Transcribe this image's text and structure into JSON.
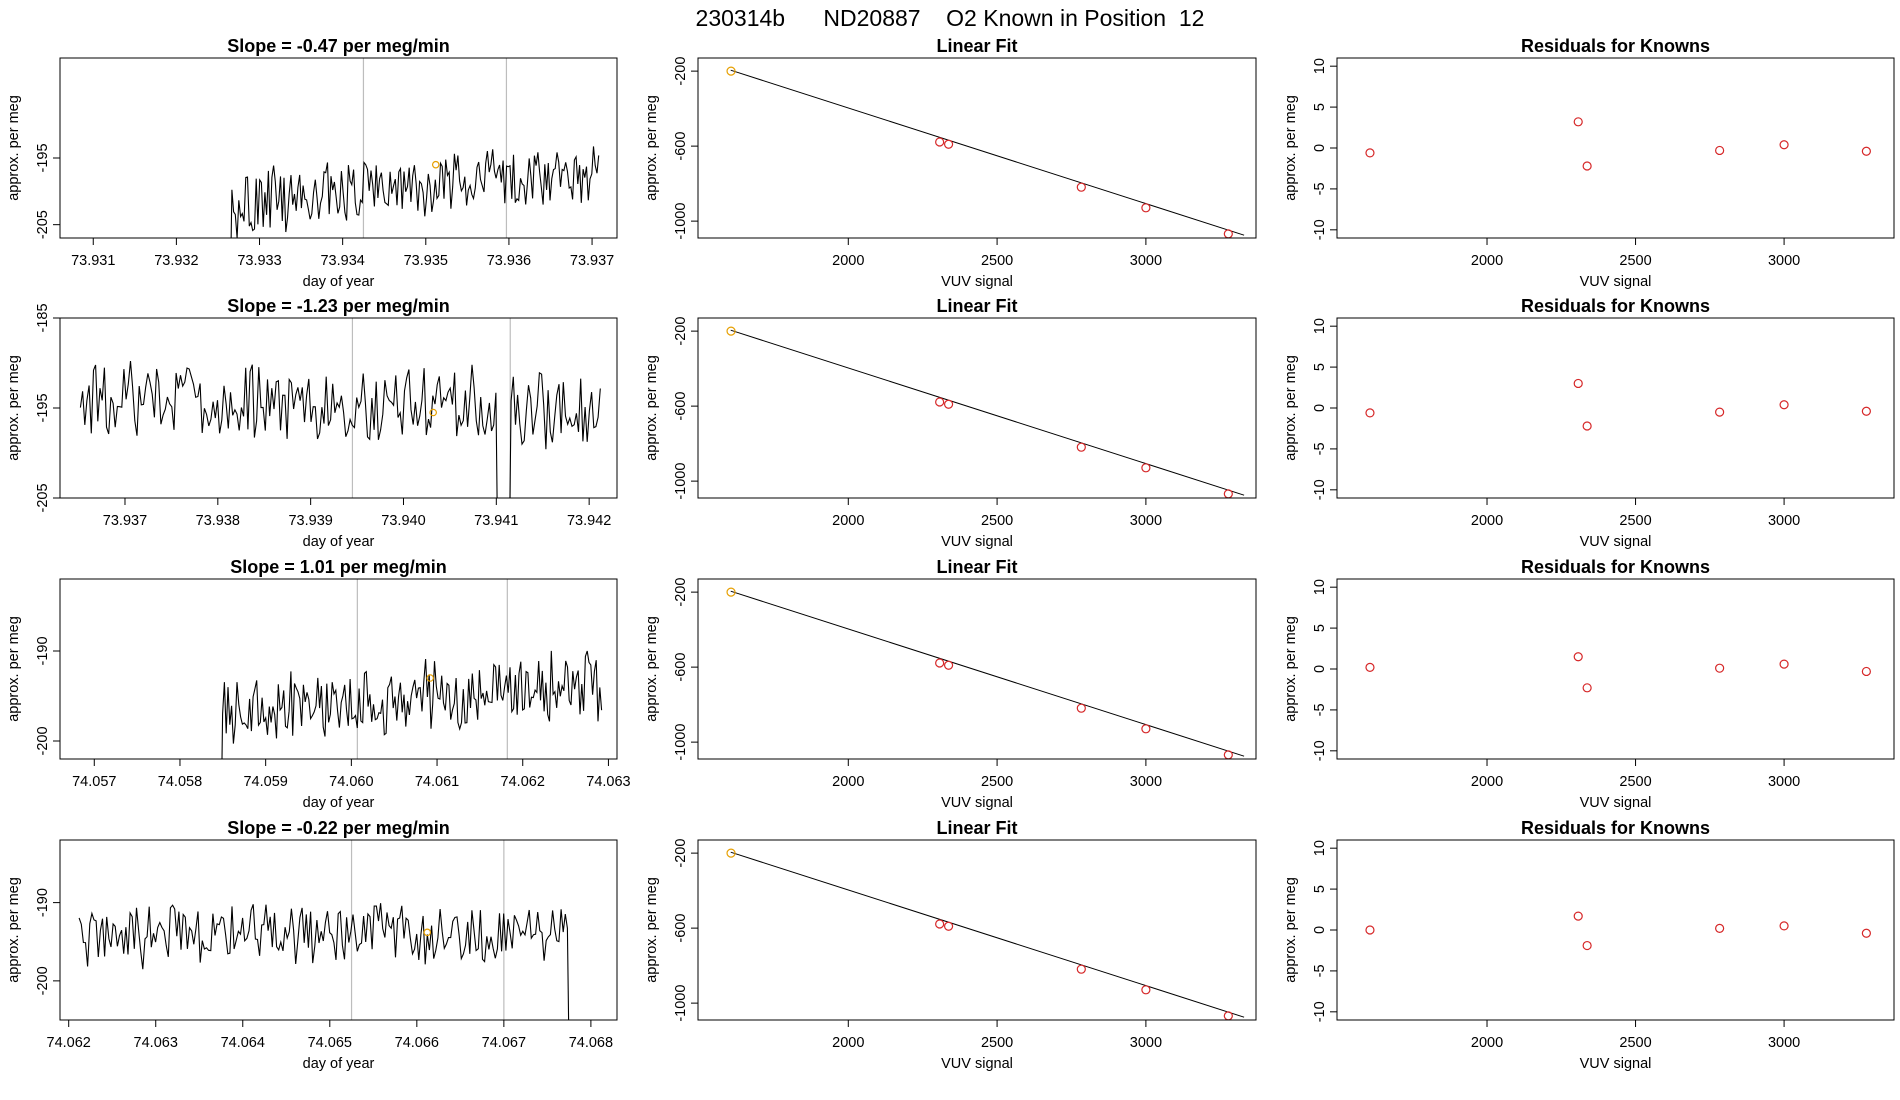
{
  "figure_title": {
    "run_id": "230314b",
    "tank_id": "ND20887",
    "gas": "O2 Known in Position",
    "position": "12"
  },
  "chart_data": [
    {
      "panel": "timeseries-1",
      "type": "line",
      "title": "Slope =  -0.47  per meg/min",
      "xlabel": "day of year",
      "ylabel": "approx. per meg",
      "xlim": [
        73.9306,
        73.9373
      ],
      "ylim": [
        -207,
        -180
      ],
      "xticks": [
        "73.931",
        "73.932",
        "73.933",
        "73.934",
        "73.935",
        "73.936",
        "73.937"
      ],
      "xtick_values": [
        73.931,
        73.932,
        73.933,
        73.934,
        73.935,
        73.936,
        73.937
      ],
      "yticks": [
        "-195",
        "-205"
      ],
      "ytick_values": [
        -195,
        -205
      ],
      "vlines": [
        73.93425,
        73.93597
      ],
      "series_start": 73.9325,
      "series_end": 73.93708,
      "series_n": 220,
      "series_base": -199.5,
      "series_trend": 5.0,
      "series_amp": 4.2,
      "series_offset": 0.02,
      "dropout_start": 73.9325,
      "dropout_end": 73.93265,
      "marker": {
        "x": 73.93512,
        "y": -196.0
      }
    },
    {
      "panel": "linearfit-1",
      "type": "scatter",
      "title": "Linear Fit",
      "xlabel": "VUV signal",
      "ylabel": "approx. per meg",
      "xlim": [
        1495,
        3370
      ],
      "ylim": [
        -1090,
        -130
      ],
      "xticks": [
        "2000",
        "2500",
        "3000"
      ],
      "xtick_values": [
        2000,
        2500,
        3000
      ],
      "yticks": [
        "-200",
        "-600",
        "-1000"
      ],
      "ytick_values": [
        -200,
        -600,
        -1000
      ],
      "fit_line": {
        "x0": 1605,
        "y0": -195,
        "x1": 3330,
        "y1": -1075
      },
      "points": [
        {
          "x": 1606,
          "y": -200,
          "role": "current"
        },
        {
          "x": 2307,
          "y": -578
        },
        {
          "x": 2337,
          "y": -590
        },
        {
          "x": 2783,
          "y": -819
        },
        {
          "x": 3000,
          "y": -929
        },
        {
          "x": 3277,
          "y": -1068
        }
      ]
    },
    {
      "panel": "residuals-1",
      "type": "scatter",
      "title": "Residuals for Knowns",
      "xlabel": "VUV signal",
      "ylabel": "approx. per meg",
      "xlim": [
        1495,
        3370
      ],
      "ylim": [
        -11,
        11
      ],
      "xticks": [
        "2000",
        "2500",
        "3000"
      ],
      "xtick_values": [
        2000,
        2500,
        3000
      ],
      "yticks": [
        "10",
        "5",
        "0",
        "-5",
        "-10"
      ],
      "ytick_values": [
        10,
        5,
        0,
        -5,
        -10
      ],
      "points": [
        {
          "x": 1606,
          "y": -0.6
        },
        {
          "x": 2307,
          "y": 3.2
        },
        {
          "x": 2337,
          "y": -2.2
        },
        {
          "x": 2783,
          "y": -0.3
        },
        {
          "x": 3000,
          "y": 0.4
        },
        {
          "x": 3277,
          "y": -0.4
        }
      ]
    },
    {
      "panel": "timeseries-2",
      "type": "line",
      "title": "Slope =  -1.23  per meg/min",
      "xlabel": "day of year",
      "ylabel": "approx. per meg",
      "xlim": [
        73.9363,
        73.9423
      ],
      "ylim": [
        -205,
        -185
      ],
      "xticks": [
        "73.937",
        "73.938",
        "73.939",
        "73.940",
        "73.941",
        "73.942"
      ],
      "xtick_values": [
        73.937,
        73.938,
        73.939,
        73.94,
        73.941,
        73.942
      ],
      "yticks": [
        "-185",
        "-195",
        "-205"
      ],
      "ytick_values": [
        -185,
        -195,
        -205
      ],
      "vlines": [
        73.93945,
        73.94115
      ],
      "series_start": 73.93652,
      "series_end": 73.94212,
      "series_n": 240,
      "series_base": -194.5,
      "series_trend": -1.5,
      "series_amp": 3.8,
      "series_offset": 0.41,
      "dropout_start": 73.941,
      "dropout_end": 73.94115,
      "marker": {
        "x": 73.94032,
        "y": -195.5
      }
    },
    {
      "panel": "linearfit-2",
      "type": "scatter",
      "title": "Linear Fit",
      "xlabel": "VUV signal",
      "ylabel": "approx. per meg",
      "xlim": [
        1495,
        3370
      ],
      "ylim": [
        -1090,
        -130
      ],
      "xticks": [
        "2000",
        "2500",
        "3000"
      ],
      "xtick_values": [
        2000,
        2500,
        3000
      ],
      "yticks": [
        "-200",
        "-600",
        "-1000"
      ],
      "ytick_values": [
        -200,
        -600,
        -1000
      ],
      "fit_line": {
        "x0": 1605,
        "y0": -195,
        "x1": 3330,
        "y1": -1075
      },
      "points": [
        {
          "x": 1606,
          "y": -200,
          "role": "current"
        },
        {
          "x": 2307,
          "y": -578
        },
        {
          "x": 2337,
          "y": -590
        },
        {
          "x": 2783,
          "y": -819
        },
        {
          "x": 3000,
          "y": -929
        },
        {
          "x": 3277,
          "y": -1068
        }
      ]
    },
    {
      "panel": "residuals-2",
      "type": "scatter",
      "title": "Residuals for Knowns",
      "xlabel": "VUV signal",
      "ylabel": "approx. per meg",
      "xlim": [
        1495,
        3370
      ],
      "ylim": [
        -11,
        11
      ],
      "xticks": [
        "2000",
        "2500",
        "3000"
      ],
      "xtick_values": [
        2000,
        2500,
        3000
      ],
      "yticks": [
        "10",
        "5",
        "0",
        "-5",
        "-10"
      ],
      "ytick_values": [
        10,
        5,
        0,
        -5,
        -10
      ],
      "points": [
        {
          "x": 1606,
          "y": -0.6
        },
        {
          "x": 2307,
          "y": 3.0
        },
        {
          "x": 2337,
          "y": -2.2
        },
        {
          "x": 2783,
          "y": -0.5
        },
        {
          "x": 3000,
          "y": 0.4
        },
        {
          "x": 3277,
          "y": -0.4
        }
      ]
    },
    {
      "panel": "timeseries-3",
      "type": "line",
      "title": "Slope =  1.01  per meg/min",
      "xlabel": "day of year",
      "ylabel": "approx. per meg",
      "xlim": [
        74.0566,
        74.0631
      ],
      "ylim": [
        -202,
        -182
      ],
      "xticks": [
        "74.057",
        "74.058",
        "74.059",
        "74.060",
        "74.061",
        "74.062",
        "74.063"
      ],
      "xtick_values": [
        74.057,
        74.058,
        74.059,
        74.06,
        74.061,
        74.062,
        74.063
      ],
      "yticks": [
        "-190",
        "-200"
      ],
      "ytick_values": [
        -190,
        -200
      ],
      "vlines": [
        74.06007,
        74.06182
      ],
      "series_start": 74.05833,
      "series_end": 74.06292,
      "series_n": 220,
      "series_base": -195.3,
      "series_trend": 3.0,
      "series_amp": 3.2,
      "series_offset": 0.77,
      "dropout_start": 74.05833,
      "dropout_end": 74.05848,
      "marker": {
        "x": 74.06092,
        "y": -193.0
      }
    },
    {
      "panel": "linearfit-3",
      "type": "scatter",
      "title": "Linear Fit",
      "xlabel": "VUV signal",
      "ylabel": "approx. per meg",
      "xlim": [
        1495,
        3370
      ],
      "ylim": [
        -1090,
        -130
      ],
      "xticks": [
        "2000",
        "2500",
        "3000"
      ],
      "xtick_values": [
        2000,
        2500,
        3000
      ],
      "yticks": [
        "-200",
        "-600",
        "-1000"
      ],
      "ytick_values": [
        -200,
        -600,
        -1000
      ],
      "fit_line": {
        "x0": 1605,
        "y0": -195,
        "x1": 3330,
        "y1": -1075
      },
      "points": [
        {
          "x": 1606,
          "y": -200,
          "role": "current"
        },
        {
          "x": 2307,
          "y": -578
        },
        {
          "x": 2337,
          "y": -590
        },
        {
          "x": 2783,
          "y": -819
        },
        {
          "x": 3000,
          "y": -929
        },
        {
          "x": 3277,
          "y": -1068
        }
      ]
    },
    {
      "panel": "residuals-3",
      "type": "scatter",
      "title": "Residuals for Knowns",
      "xlabel": "VUV signal",
      "ylabel": "approx. per meg",
      "xlim": [
        1495,
        3370
      ],
      "ylim": [
        -11,
        11
      ],
      "xticks": [
        "2000",
        "2500",
        "3000"
      ],
      "xtick_values": [
        2000,
        2500,
        3000
      ],
      "yticks": [
        "10",
        "5",
        "0",
        "-5",
        "-10"
      ],
      "ytick_values": [
        10,
        5,
        0,
        -5,
        -10
      ],
      "points": [
        {
          "x": 1606,
          "y": 0.2
        },
        {
          "x": 2307,
          "y": 1.5
        },
        {
          "x": 2337,
          "y": -2.3
        },
        {
          "x": 2783,
          "y": 0.1
        },
        {
          "x": 3000,
          "y": 0.6
        },
        {
          "x": 3277,
          "y": -0.3
        }
      ]
    },
    {
      "panel": "timeseries-4",
      "type": "line",
      "title": "Slope =  -0.22  per meg/min",
      "xlabel": "day of year",
      "ylabel": "approx. per meg",
      "xlim": [
        74.0619,
        74.0683
      ],
      "ylim": [
        -205,
        -182
      ],
      "xticks": [
        "74.062",
        "74.063",
        "74.064",
        "74.065",
        "74.066",
        "74.067",
        "74.068"
      ],
      "xtick_values": [
        74.062,
        74.063,
        74.064,
        74.065,
        74.066,
        74.067,
        74.068
      ],
      "yticks": [
        "-190",
        "-200"
      ],
      "ytick_values": [
        -190,
        -200
      ],
      "vlines": [
        74.06525,
        74.067
      ],
      "series_start": 74.06212,
      "series_end": 74.06795,
      "series_n": 240,
      "series_base": -193.8,
      "series_trend": 0.0,
      "series_amp": 3.6,
      "series_offset": 1.13,
      "dropout_start": 74.06775,
      "dropout_end": 74.06795,
      "marker": {
        "x": 74.06612,
        "y": -193.8
      }
    },
    {
      "panel": "linearfit-4",
      "type": "scatter",
      "title": "Linear Fit",
      "xlabel": "VUV signal",
      "ylabel": "approx. per meg",
      "xlim": [
        1495,
        3370
      ],
      "ylim": [
        -1090,
        -130
      ],
      "xticks": [
        "2000",
        "2500",
        "3000"
      ],
      "xtick_values": [
        2000,
        2500,
        3000
      ],
      "yticks": [
        "-200",
        "-600",
        "-1000"
      ],
      "ytick_values": [
        -200,
        -600,
        -1000
      ],
      "fit_line": {
        "x0": 1605,
        "y0": -195,
        "x1": 3330,
        "y1": -1075
      },
      "points": [
        {
          "x": 1606,
          "y": -200,
          "role": "current"
        },
        {
          "x": 2307,
          "y": -578
        },
        {
          "x": 2337,
          "y": -590
        },
        {
          "x": 2783,
          "y": -819
        },
        {
          "x": 3000,
          "y": -929
        },
        {
          "x": 3277,
          "y": -1068
        }
      ]
    },
    {
      "panel": "residuals-4",
      "type": "scatter",
      "title": "Residuals for Knowns",
      "xlabel": "VUV signal",
      "ylabel": "approx. per meg",
      "xlim": [
        1495,
        3370
      ],
      "ylim": [
        -11,
        11
      ],
      "xticks": [
        "2000",
        "2500",
        "3000"
      ],
      "xtick_values": [
        2000,
        2500,
        3000
      ],
      "yticks": [
        "10",
        "5",
        "0",
        "-5",
        "-10"
      ],
      "ytick_values": [
        10,
        5,
        0,
        -5,
        -10
      ],
      "points": [
        {
          "x": 1606,
          "y": 0.0
        },
        {
          "x": 2307,
          "y": 1.7
        },
        {
          "x": 2337,
          "y": -1.9
        },
        {
          "x": 2783,
          "y": 0.2
        },
        {
          "x": 3000,
          "y": 0.5
        },
        {
          "x": 3277,
          "y": -0.4
        }
      ]
    }
  ],
  "colors": {
    "axis": "#000000",
    "series": "#000000",
    "vline": "#bdbdbd",
    "marker": "#e69f00",
    "residual_point": "#d62728",
    "fit_line": "#000000"
  }
}
